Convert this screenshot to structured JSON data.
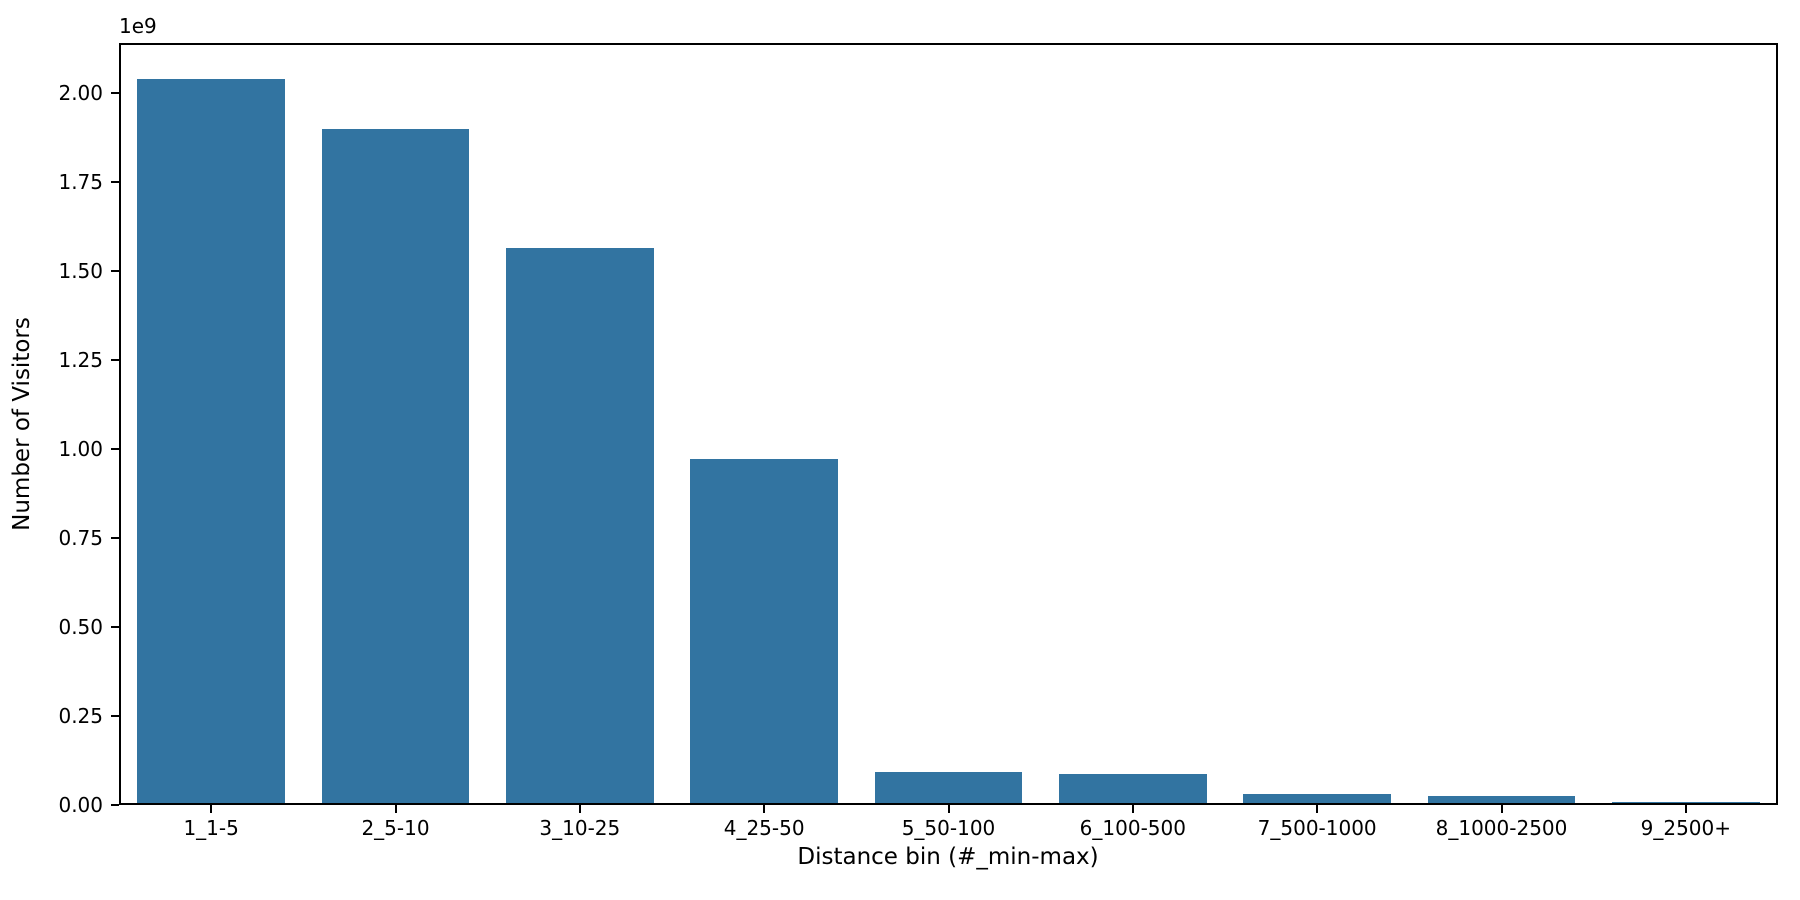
{
  "chart_data": {
    "type": "bar",
    "title": "",
    "xlabel": "Distance bin (#_min-max)",
    "ylabel": "Number of Visitors",
    "offset_text": "1e9",
    "categories": [
      "1_1-5",
      "2_5-10",
      "3_10-25",
      "4_25-50",
      "5_50-100",
      "6_100-500",
      "7_500-1000",
      "8_1000-2500",
      "9_2500+"
    ],
    "values": [
      2034000000,
      1893000000,
      1559000000,
      966000000,
      87000000,
      82000000,
      25000000,
      20000000,
      2000000
    ],
    "ylim": [
      0,
      2140000000
    ],
    "yticks": [
      0,
      250000000,
      500000000,
      750000000,
      1000000000,
      1250000000,
      1500000000,
      1750000000,
      2000000000
    ],
    "ytick_labels": [
      "0.00",
      "0.25",
      "0.50",
      "0.75",
      "1.00",
      "1.25",
      "1.50",
      "1.75",
      "2.00"
    ],
    "bar_color": "#3274a1",
    "bar_width_fraction": 0.8,
    "background_color": "#ffffff",
    "spine_color": "#000000",
    "grid": false,
    "legend": null
  }
}
